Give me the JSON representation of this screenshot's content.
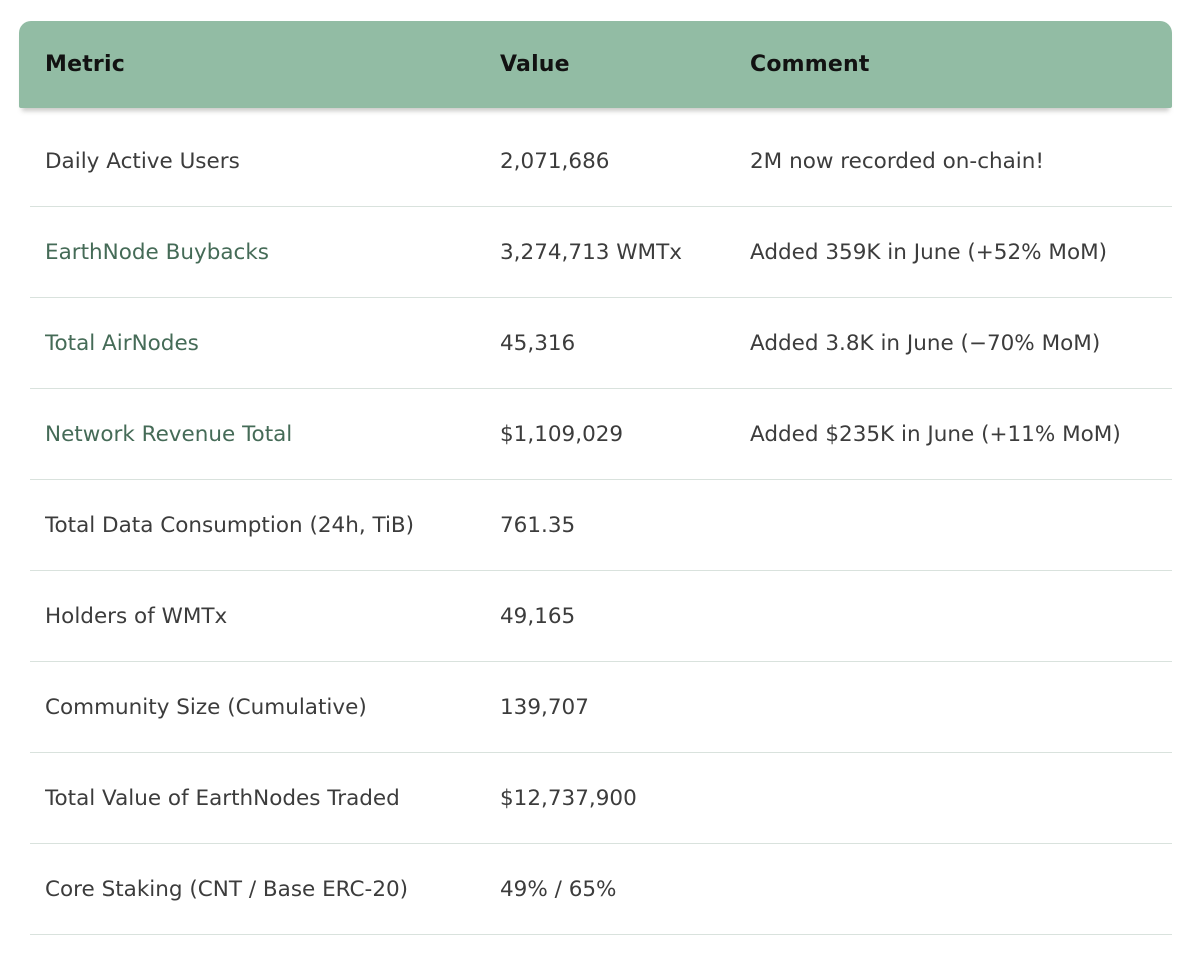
{
  "table": {
    "columns": [
      {
        "label": "Metric"
      },
      {
        "label": "Value"
      },
      {
        "label": "Comment"
      }
    ],
    "rows": [
      {
        "metric": "Daily Active Users",
        "link": false,
        "value": "2,071,686",
        "comment": "2M now recorded on-chain!"
      },
      {
        "metric": "EarthNode Buybacks",
        "link": true,
        "value": "3,274,713 WMTx",
        "comment": "Added 359K in June (+52% MoM)"
      },
      {
        "metric": "Total AirNodes",
        "link": true,
        "value": "45,316",
        "comment": "Added 3.8K in June (−70% MoM)"
      },
      {
        "metric": "Network Revenue Total",
        "link": true,
        "value": "$1,109,029",
        "comment": "Added $235K in June (+11% MoM)"
      },
      {
        "metric": "Total Data Consumption (24h, TiB)",
        "link": false,
        "value": "761.35",
        "comment": ""
      },
      {
        "metric": "Holders of WMTx",
        "link": false,
        "value": "49,165",
        "comment": ""
      },
      {
        "metric": "Community Size (Cumulative)",
        "link": false,
        "value": "139,707",
        "comment": ""
      },
      {
        "metric": "Total Value of EarthNodes Traded",
        "link": false,
        "value": "$12,737,900",
        "comment": ""
      },
      {
        "metric": "Core Staking (CNT / Base ERC-20)",
        "link": false,
        "value": "49% / 65%",
        "comment": ""
      }
    ],
    "colors": {
      "header_bg": "#92bca4",
      "header_text": "#121212",
      "body_text": "#3c3c3c",
      "link_green": "#456b57",
      "divider": "#d9e2dd"
    }
  }
}
